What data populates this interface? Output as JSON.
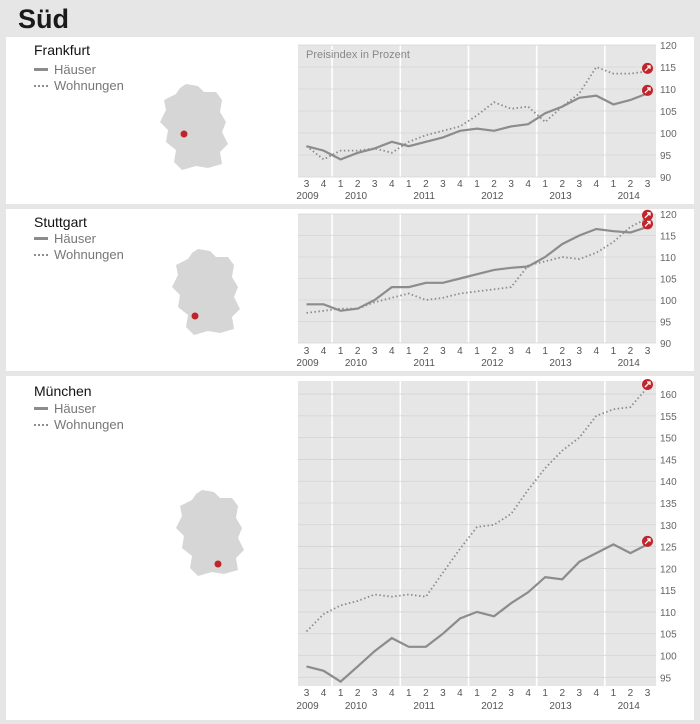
{
  "title": "Süd",
  "legend": {
    "houses": "Häuser",
    "apartments": "Wohnungen"
  },
  "colors": {
    "line": "#8c8c8c",
    "accent": "#c0252b",
    "plot_bg": "#e6e6e6"
  },
  "icons": {
    "map": "germany-map-icon",
    "trend": "trend-up-arrow-icon"
  },
  "chart_data": [
    {
      "type": "line",
      "city": "Frankfurt",
      "annotation": "Preisindex in Prozent",
      "x": [
        "2009-3",
        "2009-4",
        "2010-1",
        "2010-2",
        "2010-3",
        "2010-4",
        "2011-1",
        "2011-2",
        "2011-3",
        "2011-4",
        "2012-1",
        "2012-2",
        "2012-3",
        "2012-4",
        "2013-1",
        "2013-2",
        "2013-3",
        "2013-4",
        "2014-1",
        "2014-2",
        "2014-3"
      ],
      "quarter_labels": [
        "3",
        "4",
        "1",
        "2",
        "3",
        "4",
        "1",
        "2",
        "3",
        "4",
        "1",
        "2",
        "3",
        "4",
        "1",
        "2",
        "3",
        "4",
        "1",
        "2",
        "3"
      ],
      "year_labels": [
        "2009",
        "2010",
        "2011",
        "2012",
        "2013",
        "2014"
      ],
      "series": [
        {
          "name": "Häuser",
          "values": [
            97,
            96,
            94,
            95.5,
            96.5,
            98,
            97,
            98,
            99,
            100.5,
            101,
            100.5,
            101.5,
            102,
            104.5,
            106,
            108,
            108.5,
            106.5,
            107.5,
            109
          ]
        },
        {
          "name": "Wohnungen",
          "values": [
            97,
            94,
            96,
            96,
            96.5,
            95.5,
            98,
            99.5,
            100.5,
            101.5,
            104,
            107,
            105.5,
            106,
            102.5,
            106,
            109,
            115,
            113.5,
            113.5,
            114
          ]
        }
      ],
      "ylim": [
        90,
        120
      ],
      "yticks": [
        90,
        95,
        100,
        105,
        110,
        115,
        120
      ],
      "grid": true
    },
    {
      "type": "line",
      "city": "Stuttgart",
      "x": [
        "2009-3",
        "2009-4",
        "2010-1",
        "2010-2",
        "2010-3",
        "2010-4",
        "2011-1",
        "2011-2",
        "2011-3",
        "2011-4",
        "2012-1",
        "2012-2",
        "2012-3",
        "2012-4",
        "2013-1",
        "2013-2",
        "2013-3",
        "2013-4",
        "2014-1",
        "2014-2",
        "2014-3"
      ],
      "quarter_labels": [
        "3",
        "4",
        "1",
        "2",
        "3",
        "4",
        "1",
        "2",
        "3",
        "4",
        "1",
        "2",
        "3",
        "4",
        "1",
        "2",
        "3",
        "4",
        "1",
        "2",
        "3"
      ],
      "year_labels": [
        "2009",
        "2010",
        "2011",
        "2012",
        "2013",
        "2014"
      ],
      "series": [
        {
          "name": "Häuser",
          "values": [
            99,
            99,
            97.5,
            98,
            100,
            103,
            103,
            104,
            104,
            105,
            106,
            107,
            107.5,
            107.8,
            110,
            113,
            115,
            116.5,
            116,
            115.7,
            117
          ]
        },
        {
          "name": "Wohnungen",
          "values": [
            97,
            97.5,
            98,
            98,
            99.5,
            100.5,
            101.5,
            100,
            100.5,
            101.5,
            102,
            102.5,
            103,
            108,
            109,
            110,
            109.5,
            111,
            113.5,
            117,
            119
          ]
        }
      ],
      "ylim": [
        90,
        120
      ],
      "yticks": [
        90,
        95,
        100,
        105,
        110,
        115,
        120
      ],
      "grid": true
    },
    {
      "type": "line",
      "city": "München",
      "x": [
        "2009-3",
        "2009-4",
        "2010-1",
        "2010-2",
        "2010-3",
        "2010-4",
        "2011-1",
        "2011-2",
        "2011-3",
        "2011-4",
        "2012-1",
        "2012-2",
        "2012-3",
        "2012-4",
        "2013-1",
        "2013-2",
        "2013-3",
        "2013-4",
        "2014-1",
        "2014-2",
        "2014-3"
      ],
      "quarter_labels": [
        "3",
        "4",
        "1",
        "2",
        "3",
        "4",
        "1",
        "2",
        "3",
        "4",
        "1",
        "2",
        "3",
        "4",
        "1",
        "2",
        "3",
        "4",
        "1",
        "2",
        "3"
      ],
      "year_labels": [
        "2009",
        "2010",
        "2011",
        "2012",
        "2013",
        "2014"
      ],
      "series": [
        {
          "name": "Häuser",
          "values": [
            97.5,
            96.5,
            94,
            97.5,
            101,
            104,
            102,
            102,
            105,
            108.5,
            110,
            109,
            112,
            114.5,
            118,
            117.5,
            121.5,
            123.5,
            125.5,
            123.5,
            125.5
          ]
        },
        {
          "name": "Wohnungen",
          "values": [
            105.5,
            109.5,
            111.5,
            112.5,
            114,
            113.5,
            114,
            113.5,
            119,
            124.5,
            129.5,
            130,
            132.5,
            138,
            143,
            147,
            150,
            155,
            156.5,
            157,
            161.5
          ]
        }
      ],
      "ylim": [
        93,
        163
      ],
      "yticks": [
        95,
        100,
        105,
        110,
        115,
        120,
        125,
        130,
        135,
        140,
        145,
        150,
        155,
        160
      ],
      "grid": true
    }
  ]
}
